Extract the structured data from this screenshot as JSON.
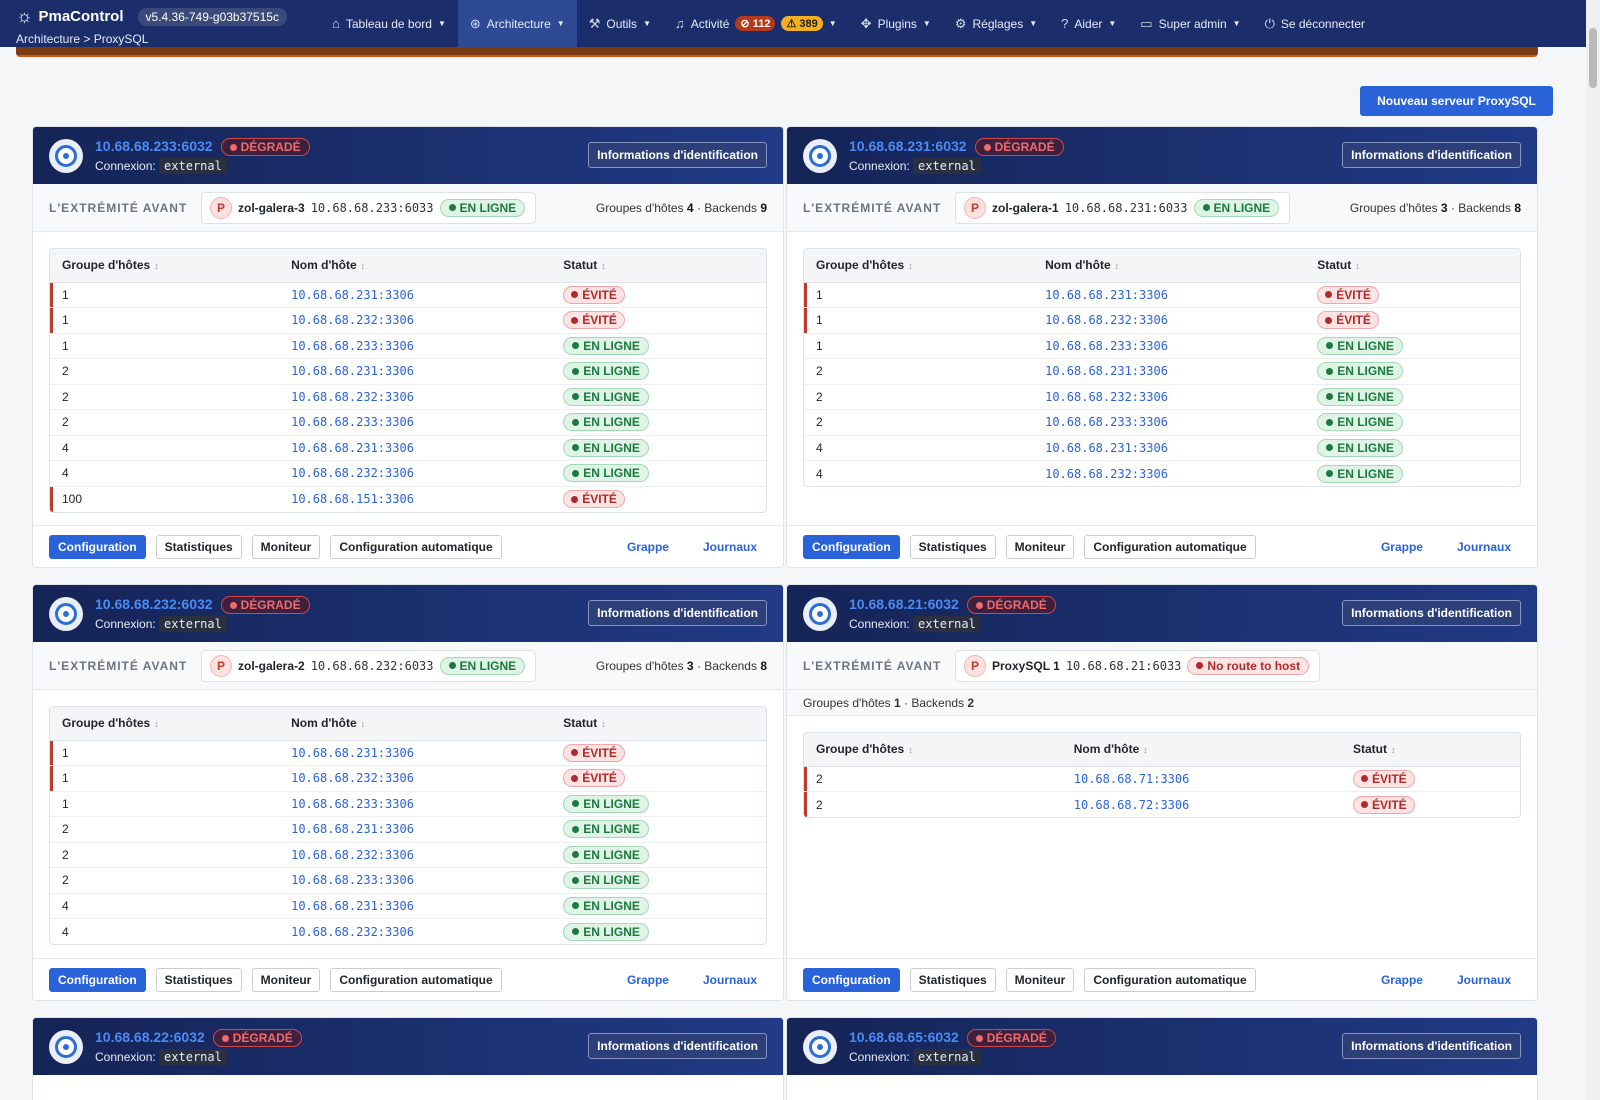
{
  "nav": {
    "brand": "PmaControl",
    "version": "v5.4.36-749-g03b37515c",
    "breadcrumb": "Architecture > ProxySQL",
    "items": [
      {
        "label": "Tableau de bord",
        "icon": "home-icon"
      },
      {
        "label": "Architecture",
        "icon": "architecture-icon"
      },
      {
        "label": "Outils",
        "icon": "wrench-icon"
      },
      {
        "label": "Activité",
        "icon": "bell-icon"
      },
      {
        "label": "Plugins",
        "icon": "puzzle-icon"
      },
      {
        "label": "Réglages",
        "icon": "gear-icon"
      },
      {
        "label": "Aider",
        "icon": "help-icon"
      },
      {
        "label": "Super admin",
        "icon": "user-card-icon"
      },
      {
        "label": "Se déconnecter",
        "icon": "power-icon"
      }
    ],
    "alerts_critical": "112",
    "alerts_warning": "389",
    "colors": {
      "nav_bg": "#1b2e6b",
      "active": "#2e4a94",
      "accent": "#2a63d9"
    }
  },
  "new_server_button": "Nouveau serveur ProxySQL",
  "labels": {
    "degraded": "DÉGRADÉ",
    "connection": "Connexion:",
    "identification": "Informations d'identification",
    "frontend": "L'EXTRÉMITÉ AVANT",
    "online": "EN LIGNE",
    "shunned": "ÉVITÉ",
    "hostgroups": "Groupes d'hôtes",
    "backends": "Backends",
    "col_hostgroup": "Groupe d'hôtes",
    "col_hostname": "Nom d'hôte",
    "col_status": "Statut",
    "btn_config": "Configuration",
    "btn_stats": "Statistiques",
    "btn_monitor": "Moniteur",
    "btn_autoconfig": "Configuration automatique",
    "link_cluster": "Grappe",
    "link_logs": "Journaux"
  },
  "cards": [
    {
      "address": "10.68.68.233:6032",
      "connection": "external",
      "frontend_name": "zol-galera-3",
      "frontend_addr": "10.68.68.233:6033",
      "frontend_status": "EN LIGNE",
      "hostgroups": "4",
      "backends": "9",
      "rows": [
        {
          "hg": "1",
          "host": "10.68.68.231:3306",
          "status": "ÉVITÉ"
        },
        {
          "hg": "1",
          "host": "10.68.68.232:3306",
          "status": "ÉVITÉ"
        },
        {
          "hg": "1",
          "host": "10.68.68.233:3306",
          "status": "EN LIGNE"
        },
        {
          "hg": "2",
          "host": "10.68.68.231:3306",
          "status": "EN LIGNE"
        },
        {
          "hg": "2",
          "host": "10.68.68.232:3306",
          "status": "EN LIGNE"
        },
        {
          "hg": "2",
          "host": "10.68.68.233:3306",
          "status": "EN LIGNE"
        },
        {
          "hg": "4",
          "host": "10.68.68.231:3306",
          "status": "EN LIGNE"
        },
        {
          "hg": "4",
          "host": "10.68.68.232:3306",
          "status": "EN LIGNE"
        },
        {
          "hg": "100",
          "host": "10.68.68.151:3306",
          "status": "ÉVITÉ"
        }
      ]
    },
    {
      "address": "10.68.68.231:6032",
      "connection": "external",
      "frontend_name": "zol-galera-1",
      "frontend_addr": "10.68.68.231:6033",
      "frontend_status": "EN LIGNE",
      "hostgroups": "3",
      "backends": "8",
      "rows": [
        {
          "hg": "1",
          "host": "10.68.68.231:3306",
          "status": "ÉVITÉ"
        },
        {
          "hg": "1",
          "host": "10.68.68.232:3306",
          "status": "ÉVITÉ"
        },
        {
          "hg": "1",
          "host": "10.68.68.233:3306",
          "status": "EN LIGNE"
        },
        {
          "hg": "2",
          "host": "10.68.68.231:3306",
          "status": "EN LIGNE"
        },
        {
          "hg": "2",
          "host": "10.68.68.232:3306",
          "status": "EN LIGNE"
        },
        {
          "hg": "2",
          "host": "10.68.68.233:3306",
          "status": "EN LIGNE"
        },
        {
          "hg": "4",
          "host": "10.68.68.231:3306",
          "status": "EN LIGNE"
        },
        {
          "hg": "4",
          "host": "10.68.68.232:3306",
          "status": "EN LIGNE"
        }
      ]
    },
    {
      "address": "10.68.68.232:6032",
      "connection": "external",
      "frontend_name": "zol-galera-2",
      "frontend_addr": "10.68.68.232:6033",
      "frontend_status": "EN LIGNE",
      "hostgroups": "3",
      "backends": "8",
      "rows": [
        {
          "hg": "1",
          "host": "10.68.68.231:3306",
          "status": "ÉVITÉ"
        },
        {
          "hg": "1",
          "host": "10.68.68.232:3306",
          "status": "ÉVITÉ"
        },
        {
          "hg": "1",
          "host": "10.68.68.233:3306",
          "status": "EN LIGNE"
        },
        {
          "hg": "2",
          "host": "10.68.68.231:3306",
          "status": "EN LIGNE"
        },
        {
          "hg": "2",
          "host": "10.68.68.232:3306",
          "status": "EN LIGNE"
        },
        {
          "hg": "2",
          "host": "10.68.68.233:3306",
          "status": "EN LIGNE"
        },
        {
          "hg": "4",
          "host": "10.68.68.231:3306",
          "status": "EN LIGNE"
        },
        {
          "hg": "4",
          "host": "10.68.68.232:3306",
          "status": "EN LIGNE"
        }
      ]
    },
    {
      "address": "10.68.68.21:6032",
      "connection": "external",
      "frontend_name": "ProxySQL 1",
      "frontend_addr": "10.68.68.21:6033",
      "frontend_status": "No route to host",
      "hostgroups": "1",
      "backends": "2",
      "rows": [
        {
          "hg": "2",
          "host": "10.68.68.71:3306",
          "status": "ÉVITÉ"
        },
        {
          "hg": "2",
          "host": "10.68.68.72:3306",
          "status": "ÉVITÉ"
        }
      ]
    },
    {
      "address": "10.68.68.22:6032",
      "connection": "external"
    },
    {
      "address": "10.68.68.65:6032",
      "connection": "external"
    }
  ]
}
